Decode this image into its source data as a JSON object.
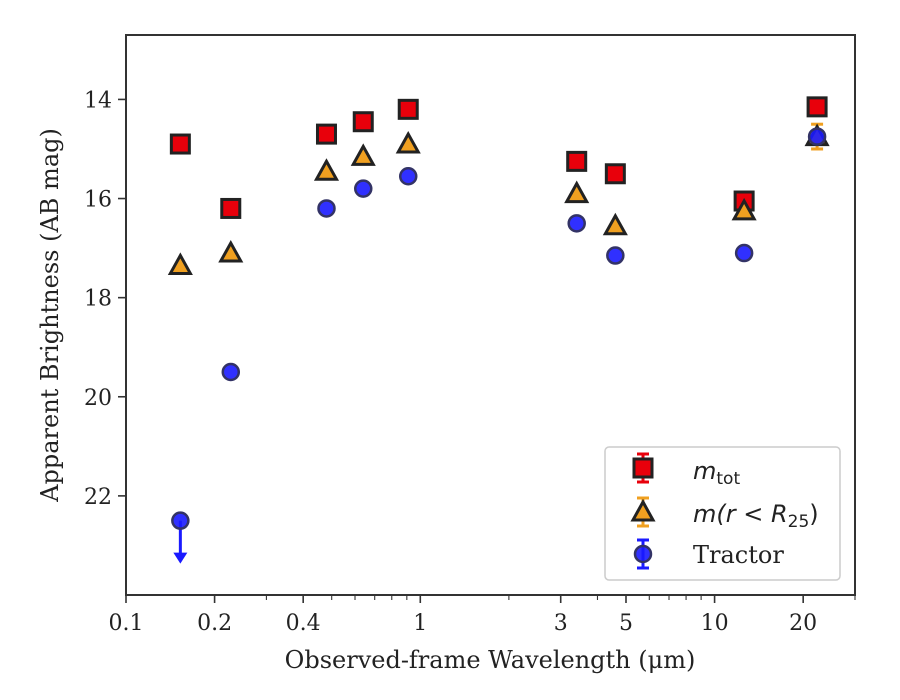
{
  "chart_data": {
    "type": "scatter",
    "xlabel": "Observed-frame Wavelength (μm)",
    "ylabel": "Apparent Brightness (AB mag)",
    "x_scale": "log",
    "xlim": [
      0.1,
      30
    ],
    "ylim": [
      24,
      12.7
    ],
    "x_ticks": [
      {
        "value": 0.1,
        "label": "0.1"
      },
      {
        "value": 0.2,
        "label": "0.2"
      },
      {
        "value": 0.4,
        "label": "0.4"
      },
      {
        "value": 1,
        "label": "1"
      },
      {
        "value": 3,
        "label": "3"
      },
      {
        "value": 5,
        "label": "5"
      },
      {
        "value": 10,
        "label": "10"
      },
      {
        "value": 20,
        "label": "20"
      }
    ],
    "y_ticks": [
      {
        "value": 14,
        "label": "14"
      },
      {
        "value": 16,
        "label": "16"
      },
      {
        "value": 18,
        "label": "18"
      },
      {
        "value": 20,
        "label": "20"
      },
      {
        "value": 22,
        "label": "22"
      }
    ],
    "grid": false,
    "legend_position": "lower-right",
    "series": [
      {
        "name": "m_tot",
        "marker": "square",
        "color": "#e8000b",
        "points": [
          {
            "x": 0.153,
            "y": 14.9
          },
          {
            "x": 0.227,
            "y": 16.2
          },
          {
            "x": 0.48,
            "y": 14.7
          },
          {
            "x": 0.64,
            "y": 14.45
          },
          {
            "x": 0.91,
            "y": 14.2
          },
          {
            "x": 3.4,
            "y": 15.25
          },
          {
            "x": 4.6,
            "y": 15.5
          },
          {
            "x": 12.6,
            "y": 16.05
          },
          {
            "x": 22.3,
            "y": 14.15
          }
        ]
      },
      {
        "name": "m(r < R25)",
        "marker": "triangle",
        "color": "#f0a020",
        "points": [
          {
            "x": 0.153,
            "y": 17.35
          },
          {
            "x": 0.227,
            "y": 17.1
          },
          {
            "x": 0.48,
            "y": 15.45
          },
          {
            "x": 0.64,
            "y": 15.15
          },
          {
            "x": 0.91,
            "y": 14.9
          },
          {
            "x": 3.4,
            "y": 15.9
          },
          {
            "x": 4.6,
            "y": 16.55
          },
          {
            "x": 12.6,
            "y": 16.25
          },
          {
            "x": 22.3,
            "y": 14.75,
            "err": 0.25
          }
        ]
      },
      {
        "name": "Tractor",
        "marker": "circle",
        "color": "#1a1aff",
        "points": [
          {
            "x": 0.153,
            "y": 22.5,
            "upper_limit": true
          },
          {
            "x": 0.227,
            "y": 19.5
          },
          {
            "x": 0.48,
            "y": 16.2
          },
          {
            "x": 0.64,
            "y": 15.8
          },
          {
            "x": 0.91,
            "y": 15.55
          },
          {
            "x": 3.4,
            "y": 16.5
          },
          {
            "x": 4.6,
            "y": 17.15
          },
          {
            "x": 12.6,
            "y": 17.1
          },
          {
            "x": 22.3,
            "y": 14.75
          }
        ]
      }
    ]
  },
  "legend": {
    "items": [
      {
        "label_main": "m",
        "label_sub": "tot"
      },
      {
        "label_main": "m(r < R",
        "label_sub": "25",
        "label_tail": ")"
      },
      {
        "label_main": "Tractor"
      }
    ]
  }
}
